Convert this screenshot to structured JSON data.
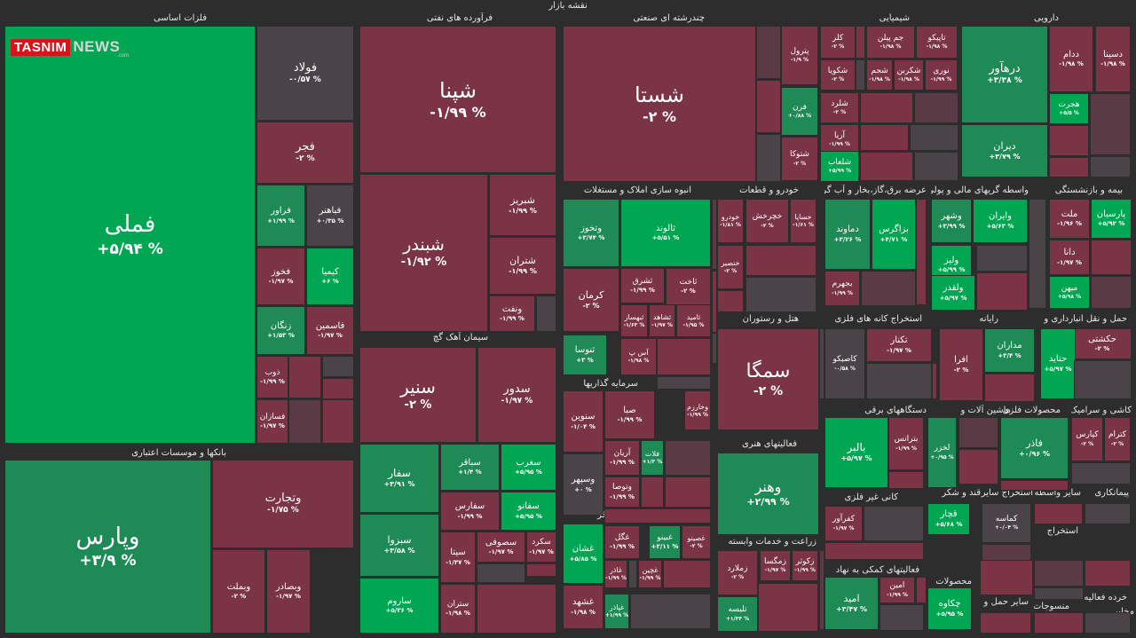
{
  "page_title": "نقشه بازار",
  "logo": {
    "brand": "TASNIM",
    "suffix": "NEWS",
    "tld": ".com"
  },
  "colors": {
    "background": "#2d2d2d",
    "strong_positive": "#00a651",
    "positive": "#1e8a55",
    "neutral": "#4a4347",
    "negative": "#7b3346",
    "strong_negative": "#a02235"
  },
  "chart_data": {
    "type": "treemap",
    "title": "نقشه بازار",
    "sectors": [
      {
        "name": "فلزات اساسی"
      },
      {
        "name": "بانکها و موسسات اعتباری"
      },
      {
        "name": "فرآورده های نفتی"
      },
      {
        "name": "سیمان آهک گچ"
      },
      {
        "name": "چندرشته ای صنعتی"
      },
      {
        "name": "انبوه سازی املاک و مستغلات"
      },
      {
        "name": "سرمایه گذاریها"
      },
      {
        "name": "غذایی بجز قند وشکر"
      },
      {
        "name": "شیمیایی"
      },
      {
        "name": "خودرو و قطعات"
      },
      {
        "name": "هتل و رستوران"
      },
      {
        "name": "فعالیتهای هنری"
      },
      {
        "name": "زراعت و خدمات وابسته"
      },
      {
        "name": "دارویی"
      },
      {
        "name": "عرضه برق،گاز،بخار و آب گرم"
      },
      {
        "name": "واسطه گریهای مالی و پولی"
      },
      {
        "name": "بیمه و بازنشستگی"
      },
      {
        "name": "استخراج کانه های فلزی"
      },
      {
        "name": "رایانه"
      },
      {
        "name": "حمل و نقل انبارداری و"
      },
      {
        "name": "دستگاههای برقی"
      },
      {
        "name": "ماشین آلات و"
      },
      {
        "name": "محصولات فلزی"
      },
      {
        "name": "کاشی و سرامیک"
      },
      {
        "name": "کانی غیر فلزی"
      },
      {
        "name": "قند و شکر"
      },
      {
        "name": "استخراج سایر"
      },
      {
        "name": "سایر واسطه"
      },
      {
        "name": "پیمانکاری"
      },
      {
        "name": "فعالیتهای کمکی به نهاد"
      },
      {
        "name": "محصولات"
      },
      {
        "name": "لاستیک و"
      },
      {
        "name": "استخراج"
      },
      {
        "name": "فنی و"
      },
      {
        "name": "وسایل"
      },
      {
        "name": "سایر حمل و"
      },
      {
        "name": "منسوجات"
      },
      {
        "name": "خرده فعالیه محصه"
      },
      {
        "name": "مخابر"
      },
      {
        "name": "اطلاعا"
      }
    ],
    "tiles": [
      {
        "name": "فملی",
        "change": "+۵/۹۴ %",
        "value": 5.94
      },
      {
        "name": "فولاد",
        "change": "-۰/۵۷ %",
        "value": -0.57
      },
      {
        "name": "فجر",
        "change": "-۲ %",
        "value": -2
      },
      {
        "name": "فراور",
        "change": "+۱/۹۹ %",
        "value": 1.99
      },
      {
        "name": "فباهنر",
        "change": "+۰/۳۵ %",
        "value": 0.35
      },
      {
        "name": "فخوز",
        "change": "-۱/۹۷ %",
        "value": -1.97
      },
      {
        "name": "کیمیا",
        "change": "+۶ %",
        "value": 6
      },
      {
        "name": "زنگان",
        "change": "+۱/۵۳ %",
        "value": 1.53
      },
      {
        "name": "فاسمین",
        "change": "-۱/۹۷ %",
        "value": -1.97
      },
      {
        "name": "ذوب",
        "change": "-۱/۹۹ %",
        "value": -1.99
      },
      {
        "name": "فسازان",
        "change": "-۱/۹۷ %",
        "value": -1.97
      },
      {
        "name": "وپارس",
        "change": "+۳/۹ %",
        "value": 3.9
      },
      {
        "name": "وتجارت",
        "change": "-۱/۷۵ %",
        "value": -1.75
      },
      {
        "name": "وبملت",
        "change": "-۲ %",
        "value": -2
      },
      {
        "name": "وبصادر",
        "change": "-۱/۹۷ %",
        "value": -1.97
      },
      {
        "name": "شپنا",
        "change": "-۱/۹۹ %",
        "value": -1.99
      },
      {
        "name": "شبندر",
        "change": "-۱/۹۲ %",
        "value": -1.92
      },
      {
        "name": "شبریز",
        "change": "-۱/۹۹ %",
        "value": -1.99
      },
      {
        "name": "شتران",
        "change": "-۱/۹۹ %",
        "value": -1.99
      },
      {
        "name": "ونفت",
        "change": "-۱/۹۹ %",
        "value": -1.99
      },
      {
        "name": "سنیر",
        "change": "-۲ %",
        "value": -2
      },
      {
        "name": "سدور",
        "change": "-۱/۹۷ %",
        "value": -1.97
      },
      {
        "name": "سفار",
        "change": "+۳/۹۱ %",
        "value": 3.91
      },
      {
        "name": "سباقر",
        "change": "+۱/۴ %",
        "value": 1.4
      },
      {
        "name": "سغرب",
        "change": "+۵/۹۵ %",
        "value": 5.95
      },
      {
        "name": "سفارس",
        "change": "-۱/۹۹ %",
        "value": -1.99
      },
      {
        "name": "سفانو",
        "change": "+۵/۹۵ %",
        "value": 5.95
      },
      {
        "name": "سبزوا",
        "change": "+۳/۵۸ %",
        "value": 3.58
      },
      {
        "name": "سیتا",
        "change": "-۱/۳۷ %",
        "value": -1.37
      },
      {
        "name": "سصوفی",
        "change": "-۱/۹۷ %",
        "value": -1.97
      },
      {
        "name": "سکرد",
        "change": "-۱/۹۷ %",
        "value": -1.97
      },
      {
        "name": "ساروم",
        "change": "+۵/۳۶ %",
        "value": 5.36
      },
      {
        "name": "ستران",
        "change": "-۱/۹۸ %",
        "value": -1.98
      },
      {
        "name": "شستا",
        "change": "-۲ %",
        "value": -2
      },
      {
        "name": "وتخوز",
        "change": "+۳/۷۴ %",
        "value": 3.74
      },
      {
        "name": "ثالوند",
        "change": "+۵/۵۱ %",
        "value": 5.51
      },
      {
        "name": "ثاخت",
        "change": "-۲ %",
        "value": -2
      },
      {
        "name": "ثشرق",
        "change": "-۱/۹۹ %",
        "value": -1.99
      },
      {
        "name": "کرمان",
        "change": "-۲ %",
        "value": -2
      },
      {
        "name": "ثبهساز",
        "change": "-۱/۶۳ %",
        "value": -1.63
      },
      {
        "name": "ثشاهد",
        "change": "-۱/۹۷ %",
        "value": -1.97
      },
      {
        "name": "ثامید",
        "change": "-۱/۹۵ %",
        "value": -1.95
      },
      {
        "name": "ثنوسا",
        "change": "+۳ %",
        "value": 3
      },
      {
        "name": "آس پ",
        "change": "-۱/۹۸ %",
        "value": -1.98
      },
      {
        "name": "سنوین",
        "change": "-۱/۰۴ %",
        "value": -1.04
      },
      {
        "name": "صبا",
        "change": "-۱/۹۹ %",
        "value": -1.99
      },
      {
        "name": "وخارزم",
        "change": "-۱/۹۹ %",
        "value": -1.99
      },
      {
        "name": "وسپهر",
        "change": "+۰ %",
        "value": 0
      },
      {
        "name": "آریان",
        "change": "-۱/۹۹ %",
        "value": -1.99
      },
      {
        "name": "فلات",
        "change": "+۱/۳ %",
        "value": 1.3
      },
      {
        "name": "وتوصا",
        "change": "-۱/۹۹ %",
        "value": -1.99
      },
      {
        "name": "غشان",
        "change": "+۵/۸۵ %",
        "value": 5.85
      },
      {
        "name": "غگل",
        "change": "-۱/۹۹ %",
        "value": -1.99
      },
      {
        "name": "غبینو",
        "change": "+۳/۱۱ %",
        "value": 3.11
      },
      {
        "name": "غصینو",
        "change": "-۲ %",
        "value": -2
      },
      {
        "name": "غاذر",
        "change": "-۱/۹۹ %",
        "value": -1.99
      },
      {
        "name": "غچین",
        "change": "-۱/۹۹ %",
        "value": -1.99
      },
      {
        "name": "غشهد",
        "change": "-۱/۹۸ %",
        "value": -1.98
      },
      {
        "name": "غپاذر",
        "change": "+۱/۹۹ %",
        "value": 1.99
      },
      {
        "name": "پترول",
        "change": "-۱/۹ %",
        "value": -1.9
      },
      {
        "name": "کلر",
        "change": "-۲ %",
        "value": -2
      },
      {
        "name": "جم پیلن",
        "change": "-۱/۹۸ %",
        "value": -1.98
      },
      {
        "name": "تاپیکو",
        "change": "-۱/۹۸ %",
        "value": -1.98
      },
      {
        "name": "شکویا",
        "change": "-۲ %",
        "value": -2
      },
      {
        "name": "شجم",
        "change": "-۱/۹۸ %",
        "value": -1.98
      },
      {
        "name": "شکربن",
        "change": "-۱/۹۸ %",
        "value": -1.98
      },
      {
        "name": "نوری",
        "change": "-۱/۹۹ %",
        "value": -1.99
      },
      {
        "name": "فرن",
        "change": "+۰/۸۸ %",
        "value": 0.88
      },
      {
        "name": "شلرد",
        "change": "-۲ %",
        "value": -2
      },
      {
        "name": "آریا",
        "change": "-۱/۹۹ %",
        "value": -1.99
      },
      {
        "name": "شتوکا",
        "change": "-۲ %",
        "value": -2
      },
      {
        "name": "شلعاب",
        "change": "+۵/۹۹ %",
        "value": 5.99
      },
      {
        "name": "درهآور",
        "change": "+۳/۳۸ %",
        "value": 3.38
      },
      {
        "name": "ددام",
        "change": "-۱/۹۸ %",
        "value": -1.98
      },
      {
        "name": "دسینا",
        "change": "-۱/۹۸ %",
        "value": -1.98
      },
      {
        "name": "هجرت",
        "change": "+۵/۵ %",
        "value": 5.5
      },
      {
        "name": "دیران",
        "change": "+۳/۷۹ %",
        "value": 3.79
      },
      {
        "name": "خودرو",
        "change": "-۱/۸۱ %",
        "value": -1.81
      },
      {
        "name": "خچرخش",
        "change": "-۲ %",
        "value": -2
      },
      {
        "name": "خساپا",
        "change": "-۱/۶۱ %",
        "value": -1.61
      },
      {
        "name": "خنصیر",
        "change": "-۲ %",
        "value": -2
      },
      {
        "name": "دماوند",
        "change": "+۳/۲۶ %",
        "value": 3.26
      },
      {
        "name": "بزاگرس",
        "change": "+۴/۷۱ %",
        "value": 4.71
      },
      {
        "name": "بجهرم",
        "change": "-۱/۹۹ %",
        "value": -1.99
      },
      {
        "name": "وشهر",
        "change": "+۳/۹۹ %",
        "value": 3.99
      },
      {
        "name": "وایران",
        "change": "+۵/۶۳ %",
        "value": 5.63
      },
      {
        "name": "ولیز",
        "change": "+۵/۹۹ %",
        "value": 5.99
      },
      {
        "name": "ولقدر",
        "change": "+۵/۹۷ %",
        "value": 5.97
      },
      {
        "name": "ملت",
        "change": "-۱/۹۶ %",
        "value": -1.96
      },
      {
        "name": "پارسیان",
        "change": "+۵/۹۲ %",
        "value": 5.92
      },
      {
        "name": "دانا",
        "change": "-۱/۹۷ %",
        "value": -1.97
      },
      {
        "name": "میهن",
        "change": "+۵/۹۸ %",
        "value": 5.98
      },
      {
        "name": "سمگا",
        "change": "-۲ %",
        "value": -2
      },
      {
        "name": "وهنر",
        "change": "+۲/۹۹ %",
        "value": 2.99
      },
      {
        "name": "زملارد",
        "change": "-۲ %",
        "value": -2
      },
      {
        "name": "زمگسا",
        "change": "-۱/۹۷ %",
        "value": -1.97
      },
      {
        "name": "زکوثر",
        "change": "-۱/۹۹ %",
        "value": -1.99
      },
      {
        "name": "تلیسه",
        "change": "+۱/۳۴ %",
        "value": 1.34
      },
      {
        "name": "تکنار",
        "change": "-۱/۹۷ %",
        "value": -1.97
      },
      {
        "name": "کاصیکو",
        "change": "-۰/۵۸ %",
        "value": -0.58
      },
      {
        "name": "افرا",
        "change": "-۲ %",
        "value": -2
      },
      {
        "name": "مداران",
        "change": "+۳/۴ %",
        "value": 3.4
      },
      {
        "name": "حکشتی",
        "change": "-۲ %",
        "value": -2
      },
      {
        "name": "حتاید",
        "change": "+۵/۹۷ %",
        "value": 5.97
      },
      {
        "name": "بترانس",
        "change": "-۱/۹۹ %",
        "value": -1.99
      },
      {
        "name": "بالبر",
        "change": "+۵/۹۷ %",
        "value": 5.97
      },
      {
        "name": "لخزر",
        "change": "+۰/۹۵ %",
        "value": 0.95
      },
      {
        "name": "فاذر",
        "change": "+۰/۹۶ %",
        "value": 0.96
      },
      {
        "name": "کپارس",
        "change": "-۲ %",
        "value": -2
      },
      {
        "name": "کترام",
        "change": "-۲ %",
        "value": -2
      },
      {
        "name": "کفرآور",
        "change": "-۱/۹۷ %",
        "value": -1.97
      },
      {
        "name": "قچار",
        "change": "+۵/۶۸ %",
        "value": 5.68
      },
      {
        "name": "کماسه",
        "change": "+۰/۰۴ %",
        "value": 0.04
      },
      {
        "name": "امین",
        "change": "-۱/۹۹ %",
        "value": -1.99
      },
      {
        "name": "امید",
        "change": "+۳/۴۷ %",
        "value": 3.47
      },
      {
        "name": "چکاوه",
        "change": "+۵/۹۵ %",
        "value": 5.95
      }
    ]
  }
}
